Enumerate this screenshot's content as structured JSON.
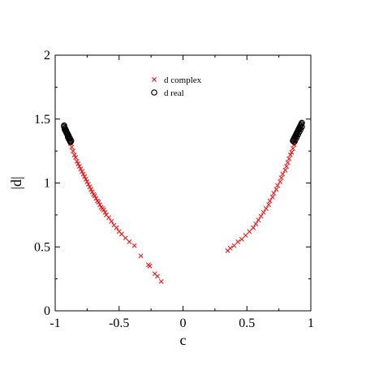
{
  "chart_data": {
    "type": "scatter",
    "title": "",
    "xlabel": "c",
    "ylabel": "|d|",
    "xlim": [
      -1,
      1
    ],
    "ylim": [
      0,
      2
    ],
    "xticks": [
      "-1",
      "-0.5",
      "0",
      "0.5",
      "1"
    ],
    "yticks": [
      "0",
      "0.5",
      "1",
      "1.5",
      "2"
    ],
    "grid": false,
    "legend_position": "top-center",
    "series": [
      {
        "name": "d complex",
        "marker": "x",
        "color": "#ff0000",
        "points": [
          [
            -0.88,
            1.31
          ],
          [
            -0.87,
            1.28
          ],
          [
            -0.86,
            1.25
          ],
          [
            -0.85,
            1.22
          ],
          [
            -0.84,
            1.2
          ],
          [
            -0.83,
            1.17
          ],
          [
            -0.82,
            1.15
          ],
          [
            -0.81,
            1.13
          ],
          [
            -0.8,
            1.11
          ],
          [
            -0.79,
            1.09
          ],
          [
            -0.78,
            1.07
          ],
          [
            -0.77,
            1.05
          ],
          [
            -0.76,
            1.03
          ],
          [
            -0.75,
            1.01
          ],
          [
            -0.74,
            0.99
          ],
          [
            -0.73,
            0.97
          ],
          [
            -0.72,
            0.95
          ],
          [
            -0.71,
            0.93
          ],
          [
            -0.7,
            0.91
          ],
          [
            -0.69,
            0.9
          ],
          [
            -0.68,
            0.88
          ],
          [
            -0.67,
            0.86
          ],
          [
            -0.66,
            0.85
          ],
          [
            -0.65,
            0.83
          ],
          [
            -0.64,
            0.81
          ],
          [
            -0.63,
            0.8
          ],
          [
            -0.62,
            0.79
          ],
          [
            -0.61,
            0.77
          ],
          [
            -0.6,
            0.75
          ],
          [
            -0.58,
            0.73
          ],
          [
            -0.56,
            0.7
          ],
          [
            -0.54,
            0.67
          ],
          [
            -0.52,
            0.65
          ],
          [
            -0.5,
            0.62
          ],
          [
            -0.48,
            0.6
          ],
          [
            -0.45,
            0.57
          ],
          [
            -0.42,
            0.54
          ],
          [
            -0.38,
            0.51
          ],
          [
            -0.33,
            0.43
          ],
          [
            -0.27,
            0.36
          ],
          [
            -0.26,
            0.35
          ],
          [
            -0.22,
            0.29
          ],
          [
            -0.2,
            0.27
          ],
          [
            -0.17,
            0.23
          ],
          [
            0.35,
            0.47
          ],
          [
            0.37,
            0.49
          ],
          [
            0.4,
            0.51
          ],
          [
            0.43,
            0.54
          ],
          [
            0.46,
            0.56
          ],
          [
            0.49,
            0.59
          ],
          [
            0.52,
            0.62
          ],
          [
            0.55,
            0.65
          ],
          [
            0.57,
            0.68
          ],
          [
            0.59,
            0.71
          ],
          [
            0.61,
            0.74
          ],
          [
            0.63,
            0.77
          ],
          [
            0.65,
            0.8
          ],
          [
            0.67,
            0.83
          ],
          [
            0.68,
            0.86
          ],
          [
            0.7,
            0.89
          ],
          [
            0.71,
            0.92
          ],
          [
            0.73,
            0.95
          ],
          [
            0.74,
            0.98
          ],
          [
            0.76,
            1.01
          ],
          [
            0.77,
            1.04
          ],
          [
            0.78,
            1.07
          ],
          [
            0.8,
            1.1
          ],
          [
            0.81,
            1.13
          ],
          [
            0.82,
            1.16
          ],
          [
            0.83,
            1.19
          ],
          [
            0.84,
            1.22
          ],
          [
            0.85,
            1.24
          ],
          [
            0.86,
            1.27
          ],
          [
            0.87,
            1.3
          ],
          [
            0.88,
            1.33
          ]
        ]
      },
      {
        "name": "d real",
        "marker": "o",
        "color": "#000000",
        "points": [
          [
            -0.93,
            1.45
          ],
          [
            -0.93,
            1.44
          ],
          [
            -0.925,
            1.43
          ],
          [
            -0.92,
            1.42
          ],
          [
            -0.92,
            1.41
          ],
          [
            -0.915,
            1.4
          ],
          [
            -0.91,
            1.39
          ],
          [
            -0.905,
            1.38
          ],
          [
            -0.9,
            1.37
          ],
          [
            -0.9,
            1.36
          ],
          [
            -0.895,
            1.35
          ],
          [
            -0.89,
            1.34
          ],
          [
            -0.885,
            1.33
          ],
          [
            -0.88,
            1.32
          ],
          [
            -0.925,
            1.42
          ],
          [
            -0.915,
            1.41
          ],
          [
            -0.905,
            1.39
          ],
          [
            -0.895,
            1.37
          ],
          [
            -0.885,
            1.35
          ],
          [
            -0.875,
            1.33
          ],
          [
            0.93,
            1.47
          ],
          [
            0.925,
            1.46
          ],
          [
            0.92,
            1.45
          ],
          [
            0.915,
            1.44
          ],
          [
            0.91,
            1.43
          ],
          [
            0.905,
            1.42
          ],
          [
            0.9,
            1.41
          ],
          [
            0.895,
            1.4
          ],
          [
            0.89,
            1.39
          ],
          [
            0.885,
            1.38
          ],
          [
            0.88,
            1.37
          ],
          [
            0.875,
            1.36
          ],
          [
            0.87,
            1.35
          ],
          [
            0.865,
            1.34
          ],
          [
            0.86,
            1.33
          ],
          [
            0.93,
            1.44
          ],
          [
            0.92,
            1.42
          ],
          [
            0.91,
            1.4
          ],
          [
            0.9,
            1.38
          ],
          [
            0.89,
            1.36
          ],
          [
            0.88,
            1.34
          ],
          [
            0.87,
            1.32
          ]
        ]
      }
    ]
  }
}
